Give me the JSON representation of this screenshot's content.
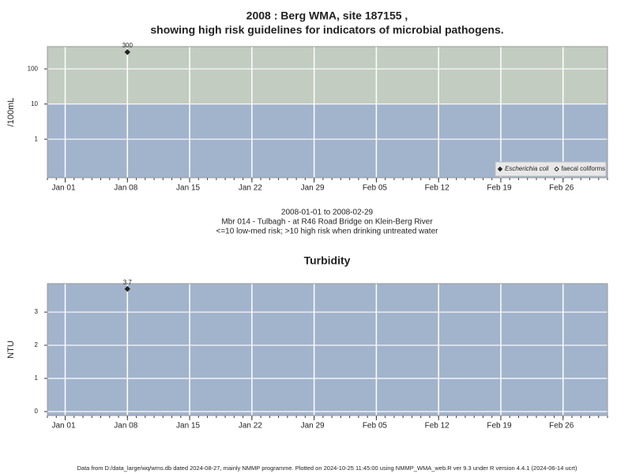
{
  "chart_data": [
    {
      "type": "scatter",
      "title": "2008 : Berg WMA, site 187155 ,",
      "subtitle": "showing high risk guidelines for indicators of microbial pathogens.",
      "ylabel": "/100mL",
      "log_y": true,
      "xlim": [
        "2007-12-30",
        "2008-03-02"
      ],
      "xticks": [
        {
          "value": "2008-01-01",
          "label": "Jan 01"
        },
        {
          "value": "2008-01-08",
          "label": "Jan 08"
        },
        {
          "value": "2008-01-15",
          "label": "Jan 15"
        },
        {
          "value": "2008-01-22",
          "label": "Jan 22"
        },
        {
          "value": "2008-01-29",
          "label": "Jan 29"
        },
        {
          "value": "2008-02-05",
          "label": "Feb 05"
        },
        {
          "value": "2008-02-12",
          "label": "Feb 12"
        },
        {
          "value": "2008-02-19",
          "label": "Feb 19"
        },
        {
          "value": "2008-02-26",
          "label": "Feb 26"
        }
      ],
      "ylim": [
        0.08,
        430
      ],
      "yticks": [
        1,
        10,
        100
      ],
      "grid": true,
      "threshold": 10,
      "below_color": "#a2b3cc",
      "above_color": "#c2ccc0",
      "legend": "bottom-right",
      "series": [
        {
          "name": "Escherichia coli",
          "font_style": "italic",
          "marker": "filled",
          "color": "#222222",
          "x": [
            "2008-01-08"
          ],
          "values": [
            300
          ]
        },
        {
          "name": "faecal coliforms",
          "font_style": "normal",
          "marker": "open",
          "color": "#222222",
          "x": [],
          "values": []
        }
      ],
      "caption": [
        "2008-01-01 to 2008-02-29",
        "Mbr 014 - Tulbagh - at R46 Road Bridge on Klein-Berg River",
        "<=10 low-med risk; >10 high risk when drinking untreated water"
      ]
    },
    {
      "type": "scatter",
      "title": "Turbidity",
      "ylabel": "NTU",
      "log_y": false,
      "xlim": [
        "2007-12-30",
        "2008-03-02"
      ],
      "xticks": [
        {
          "value": "2008-01-01",
          "label": "Jan 01"
        },
        {
          "value": "2008-01-08",
          "label": "Jan 08"
        },
        {
          "value": "2008-01-15",
          "label": "Jan 15"
        },
        {
          "value": "2008-01-22",
          "label": "Jan 22"
        },
        {
          "value": "2008-01-29",
          "label": "Jan 29"
        },
        {
          "value": "2008-02-05",
          "label": "Feb 05"
        },
        {
          "value": "2008-02-12",
          "label": "Feb 12"
        },
        {
          "value": "2008-02-19",
          "label": "Feb 19"
        },
        {
          "value": "2008-02-26",
          "label": "Feb 26"
        }
      ],
      "ylim": [
        -0.12,
        3.86
      ],
      "yticks": [
        0,
        1,
        2,
        3
      ],
      "grid": true,
      "background": "#a2b3cc",
      "series": [
        {
          "marker": "filled",
          "color": "#222222",
          "x": [
            "2008-01-08"
          ],
          "values": [
            3.7
          ]
        }
      ]
    }
  ],
  "footer": "Data from D:/data_large/wq/wms.db dated 2024-08-27, mainly NMMP programme. Plotted on 2024-10-25 11:45:00 using NMMP_WMA_web.R ver 9.3 under R version 4.4.1 (2024-06-14 ucrt)"
}
